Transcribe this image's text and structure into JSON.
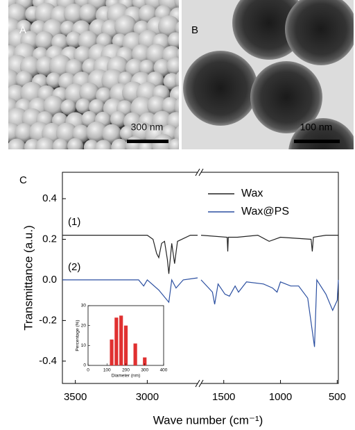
{
  "panels": [
    {
      "label": "A",
      "scale_bar": "300 nm"
    },
    {
      "label": "B",
      "scale_bar": "100 nm"
    }
  ],
  "chart_data": [
    {
      "type": "line",
      "label": "C",
      "x_label": "Wave number (cm⁻¹)",
      "y_label": "Transmittance (a.u.)",
      "annotations": [
        "(1)",
        "(2)"
      ],
      "xlim": [
        3590,
        490
      ],
      "xbreak": [
        2650,
        1700
      ],
      "xticks": [
        3500,
        3000,
        1500,
        1000,
        500
      ],
      "ylim": [
        -0.51,
        0.53
      ],
      "yticks": [
        0.4,
        0.2,
        {
          "value": 0,
          "label": "0.0"
        },
        -0.2,
        -0.4
      ],
      "legend": "upper right",
      "series": [
        {
          "name": "Wax",
          "color": "#222222",
          "x": [
            3590,
            3000,
            2960,
            2935,
            2920,
            2900,
            2880,
            2860,
            2850,
            2830,
            2810,
            2790,
            2700,
            2650,
            2000,
            1700,
            1470,
            1465,
            1460,
            1380,
            1200,
            1100,
            1000,
            730,
            720,
            710,
            600,
            490
          ],
          "values": [
            0.22,
            0.22,
            0.2,
            0.13,
            0.11,
            0.18,
            0.19,
            0.1,
            0.03,
            0.18,
            0.08,
            0.19,
            0.22,
            0.22,
            null,
            0.22,
            0.21,
            0.14,
            0.21,
            0.21,
            0.22,
            0.19,
            0.21,
            0.2,
            0.14,
            0.21,
            0.22,
            0.22
          ]
        },
        {
          "name": "Wax@PS",
          "color": "#2a4ea0",
          "x": [
            3590,
            3100,
            3060,
            3025,
            3000,
            2920,
            2850,
            2830,
            2800,
            2750,
            2650,
            2000,
            1700,
            1600,
            1580,
            1550,
            1490,
            1450,
            1400,
            1370,
            1300,
            1150,
            1070,
            1030,
            1000,
            910,
            840,
            760,
            700,
            680,
            600,
            540,
            500,
            490
          ],
          "values": [
            0.0,
            0.0,
            0.0,
            -0.03,
            0.0,
            -0.05,
            -0.11,
            0.0,
            -0.04,
            0.0,
            0.01,
            null,
            0.0,
            -0.06,
            -0.12,
            -0.02,
            -0.07,
            -0.08,
            -0.03,
            -0.06,
            -0.01,
            -0.02,
            -0.04,
            -0.06,
            -0.01,
            -0.03,
            -0.03,
            -0.09,
            -0.33,
            0.0,
            -0.07,
            -0.15,
            -0.1,
            0.0
          ]
        }
      ]
    },
    {
      "type": "bar",
      "x_label": "Diameter (nm)",
      "y_label": "Percentage (%)",
      "x": [
        125,
        150,
        175,
        200,
        250,
        300
      ],
      "values": [
        13,
        24,
        25,
        20,
        11,
        4
      ],
      "color": "#e03030",
      "xlim": [
        0,
        400
      ],
      "xticks": [
        0,
        100,
        200,
        300,
        400
      ],
      "ylim": [
        0,
        30
      ],
      "yticks": [
        0,
        10,
        20,
        30
      ]
    }
  ]
}
